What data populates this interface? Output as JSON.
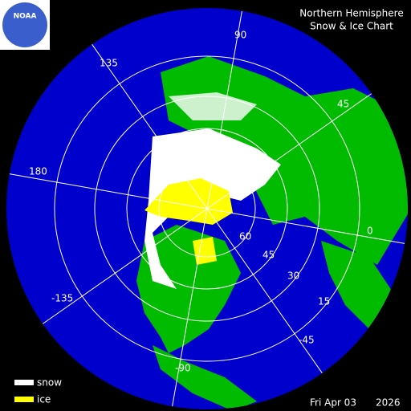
{
  "logo": {
    "text": "NOAA"
  },
  "header": {
    "title_lines": [
      "Northern Hemisphere",
      "Snow & Ice Chart"
    ]
  },
  "graticule": {
    "longitude_labels": [
      "90",
      "45",
      "0",
      "-45",
      "-90",
      "-135",
      "180",
      "135"
    ],
    "latitude_labels": [
      "60",
      "45",
      "30",
      "15"
    ]
  },
  "legend": {
    "items": [
      {
        "label": "snow",
        "color": "#ffffff"
      },
      {
        "label": "ice",
        "color": "#ffff00"
      }
    ]
  },
  "footer": {
    "date": "Fri Apr 03",
    "year": "2026"
  }
}
